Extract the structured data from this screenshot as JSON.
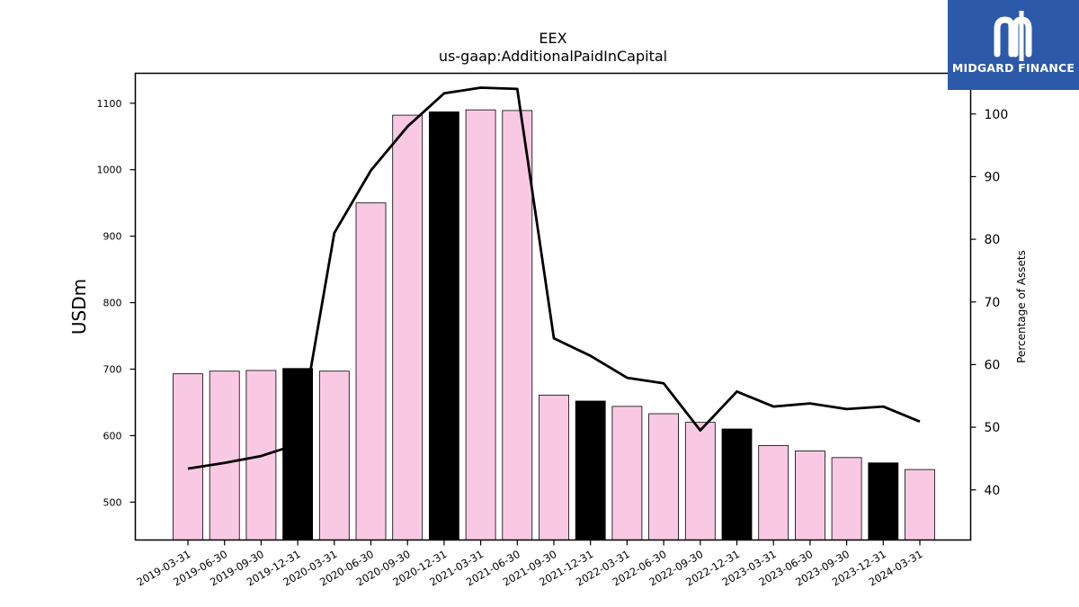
{
  "logo": {
    "text": "MIDGARD FINANCE",
    "bg_color": "#2d5aa8"
  },
  "chart_data": {
    "type": "bar+line",
    "title": "EEX",
    "subtitle": "us-gaap:AdditionalPaidInCapital",
    "ylabel": "USDm",
    "y2label": "Percentage of Assets",
    "ylim": [
      443,
      1145
    ],
    "y2lim": [
      32,
      106.5
    ],
    "yticks": [
      500,
      600,
      700,
      800,
      900,
      1000,
      1100
    ],
    "y2ticks": [
      40,
      50,
      60,
      70,
      80,
      90,
      100
    ],
    "grid": false,
    "categories": [
      "2019-03-31",
      "2019-06-30",
      "2019-09-30",
      "2019-12-31",
      "2020-03-31",
      "2020-06-30",
      "2020-09-30",
      "2020-12-31",
      "2021-03-31",
      "2021-06-30",
      "2021-09-30",
      "2021-12-31",
      "2022-03-31",
      "2022-06-30",
      "2022-09-30",
      "2022-12-31",
      "2023-03-31",
      "2023-06-30",
      "2023-09-30",
      "2023-12-31",
      "2024-03-31"
    ],
    "bar_values": [
      693,
      697,
      698,
      701,
      697,
      950,
      1082,
      1087,
      1090,
      1089,
      661,
      652,
      644,
      633,
      620,
      610,
      585,
      577,
      567,
      559,
      549
    ],
    "bar_colors": [
      "#f9c9e4",
      "#f9c9e4",
      "#f9c9e4",
      "#000000",
      "#f9c9e4",
      "#f9c9e4",
      "#f9c9e4",
      "#000000",
      "#f9c9e4",
      "#f9c9e4",
      "#f9c9e4",
      "#000000",
      "#f9c9e4",
      "#f9c9e4",
      "#f9c9e4",
      "#000000",
      "#f9c9e4",
      "#f9c9e4",
      "#f9c9e4",
      "#000000",
      "#f9c9e4"
    ],
    "line_values": [
      43.4,
      44.3,
      45.4,
      47.3,
      81.0,
      91.0,
      98.0,
      103.3,
      104.2,
      104.0,
      64.2,
      61.4,
      57.9,
      57.0,
      49.5,
      55.7,
      53.3,
      53.8,
      52.9,
      53.3,
      50.9
    ],
    "line_color": "#000000"
  }
}
